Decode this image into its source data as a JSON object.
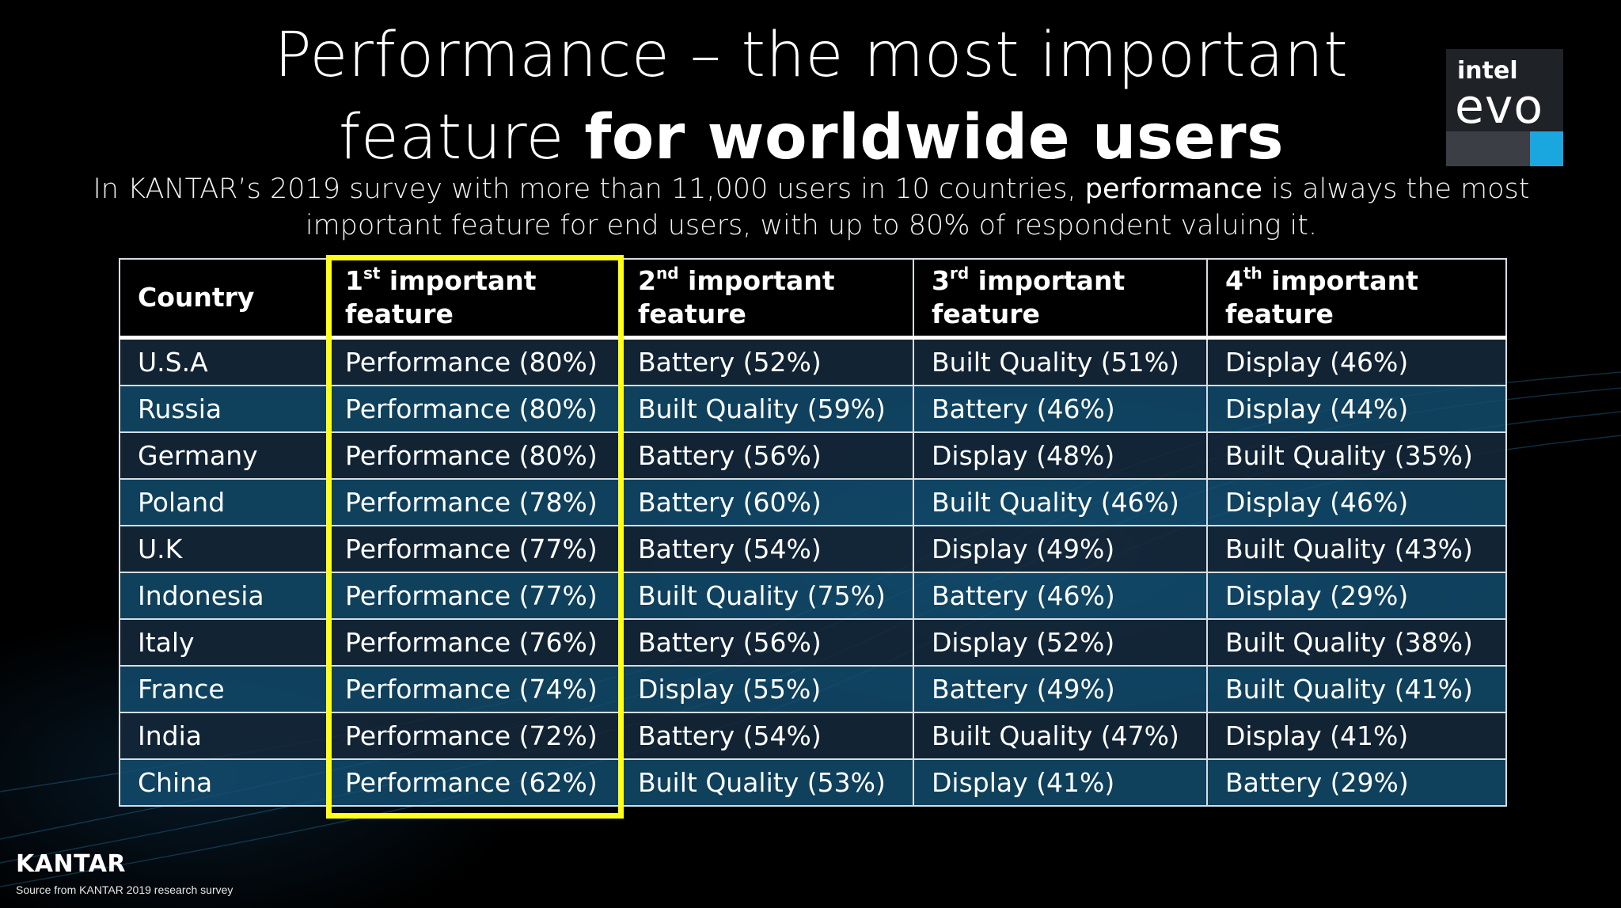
{
  "slide": {
    "title_line1": "Performance – the most important",
    "title_line2_light": "feature ",
    "title_line2_bold": "for worldwide users",
    "subtitle_part1": "In KANTAR’s 2019 survey with more than 11,000 users  in 10 countries, ",
    "subtitle_emph": "performance",
    "subtitle_part2": " is always the most important feature for end users, with up to 80% of respondent valuing it."
  },
  "logo": {
    "line1": "intel",
    "line2": "evo",
    "accent_color": "#1aa7e0"
  },
  "table": {
    "headers": [
      {
        "pre": "Country",
        "sup": "",
        "post": ""
      },
      {
        "pre": "1",
        "sup": "st",
        "post": " important feature"
      },
      {
        "pre": "2",
        "sup": "nd",
        "post": " important feature"
      },
      {
        "pre": "3",
        "sup": "rd",
        "post": " important feature"
      },
      {
        "pre": "4",
        "sup": "th",
        "post": " important feature"
      }
    ],
    "rows": [
      [
        "U.S.A",
        "Performance (80%)",
        "Battery (52%)",
        "Built Quality (51%)",
        "Display (46%)"
      ],
      [
        "Russia",
        "Performance (80%)",
        "Built Quality (59%)",
        "Battery (46%)",
        "Display (44%)"
      ],
      [
        "Germany",
        "Performance (80%)",
        "Battery (56%)",
        "Display (48%)",
        "Built Quality (35%)"
      ],
      [
        "Poland",
        "Performance (78%)",
        "Battery (60%)",
        "Built Quality (46%)",
        "Display (46%)"
      ],
      [
        "U.K",
        "Performance (77%)",
        "Battery (54%)",
        "Display (49%)",
        "Built Quality (43%)"
      ],
      [
        "Indonesia",
        "Performance (77%)",
        "Built Quality (75%)",
        "Battery (46%)",
        "Display (29%)"
      ],
      [
        "Italy",
        "Performance (76%)",
        "Battery (56%)",
        "Display (52%)",
        "Built Quality (38%)"
      ],
      [
        "France",
        "Performance (74%)",
        "Display (55%)",
        "Battery (49%)",
        "Built Quality (41%)"
      ],
      [
        "India",
        "Performance (72%)",
        "Battery (54%)",
        "Built Quality (47%)",
        "Display (41%)"
      ],
      [
        "China",
        "Performance (62%)",
        "Built Quality (53%)",
        "Display (41%)",
        "Battery (29%)"
      ]
    ],
    "highlight_color": "#ffff1a"
  },
  "footer": {
    "brand": "KANTAR",
    "source": "Source from KANTAR 2019 research survey"
  }
}
